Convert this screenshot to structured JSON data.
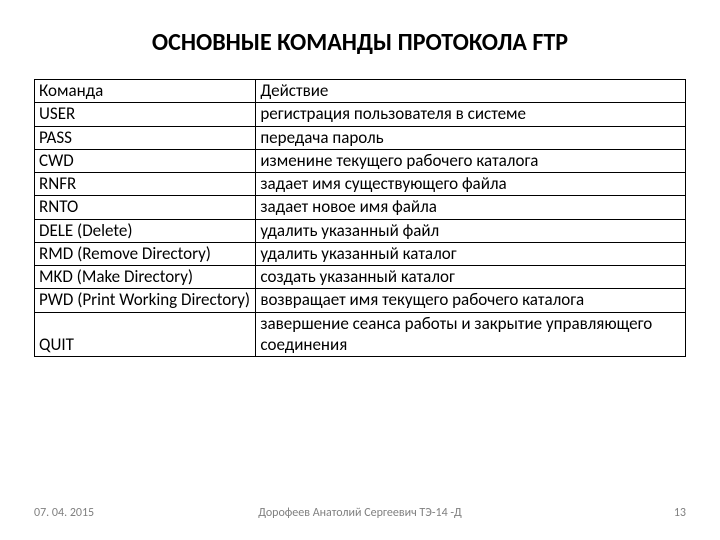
{
  "title": "ОСНОВНЫЕ КОМАНДЫ ПРОТОКОЛА FTP",
  "table": {
    "header": {
      "col1": "Команда",
      "col2": "Действие"
    },
    "rows": [
      {
        "col1": "USER",
        "col2": "регистрация пользователя в системе"
      },
      {
        "col1": "PASS",
        "col2": "передача пароль"
      },
      {
        "col1": "CWD",
        "col2": "изменине текущего рабочего каталога"
      },
      {
        "col1": "RNFR",
        "col2": "задает имя существующего файла"
      },
      {
        "col1": "RNTO",
        "col2": "задает новое имя файла"
      },
      {
        "col1": "DELE (Delete)",
        "col2": "удалить указанный файл"
      },
      {
        "col1": "RMD (Remove Directory)",
        "col2": "удалить указанный каталог"
      },
      {
        "col1": "MKD (Make Directory)",
        "col2": "создать указанный каталог"
      },
      {
        "col1": "PWD (Print Working Directory)",
        "col2": "возвращает имя текущего рабочего каталога"
      },
      {
        "col1": "QUIT",
        "col2": "завершение сеанса работы и закрытие управляющего соединения"
      }
    ]
  },
  "footer": {
    "date": "07. 04. 2015",
    "author": "Дорофеев Анатолий Сергеевич ТЭ-14 -Д",
    "page": "13"
  },
  "colors": {
    "background": "#ffffff",
    "text": "#000000",
    "border": "#000000",
    "footer_text": "#808080"
  },
  "fonts": {
    "title_size": 24,
    "body_size": 17,
    "footer_size": 12
  }
}
